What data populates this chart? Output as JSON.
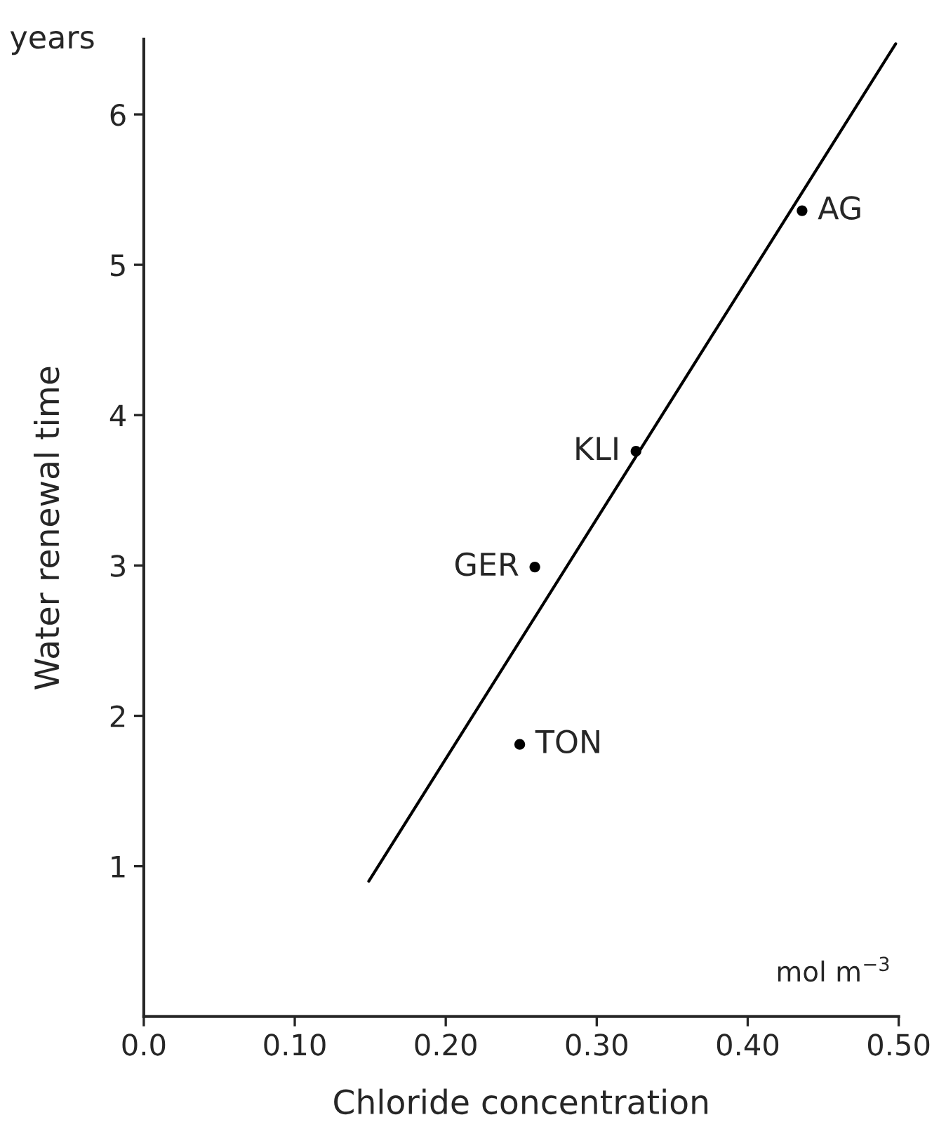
{
  "chart_data": {
    "type": "scatter",
    "xlabel": "Chloride concentration",
    "ylabel": "Water renewal time",
    "xlim": [
      0,
      0.5
    ],
    "ylim": [
      0,
      6.5
    ],
    "xticks": [
      {
        "value": 0,
        "label": "0.0"
      },
      {
        "value": 0.1,
        "label": "0.10"
      },
      {
        "value": 0.2,
        "label": "0.20"
      },
      {
        "value": 0.3,
        "label": "0.30"
      },
      {
        "value": 0.4,
        "label": "0.40"
      },
      {
        "value": 0.5,
        "label": "0.50"
      }
    ],
    "yticks": [
      1,
      2,
      3,
      4,
      5,
      6
    ],
    "grid": false,
    "legend": false,
    "series": [
      {
        "color": "#000000",
        "marker": "circle",
        "x": [
          0.436,
          0.326,
          0.259,
          0.249
        ],
        "values": [
          5.36,
          3.76,
          2.99,
          1.81
        ]
      },
      {
        "type": "line",
        "color": "#000000",
        "line_style": "solid",
        "x": [
          0.149,
          0.498
        ],
        "values": [
          0.9,
          6.47
        ]
      }
    ],
    "annotations": [
      {
        "text": "AG",
        "x": 0.436,
        "y": 5.36
      },
      {
        "text": "KLI",
        "x": 0.326,
        "y": 3.76
      },
      {
        "text": "GER",
        "x": 0.259,
        "y": 2.99
      },
      {
        "text": "TON",
        "x": 0.249,
        "y": 1.81
      },
      "years",
      "mol m$^{−3}$"
    ]
  }
}
